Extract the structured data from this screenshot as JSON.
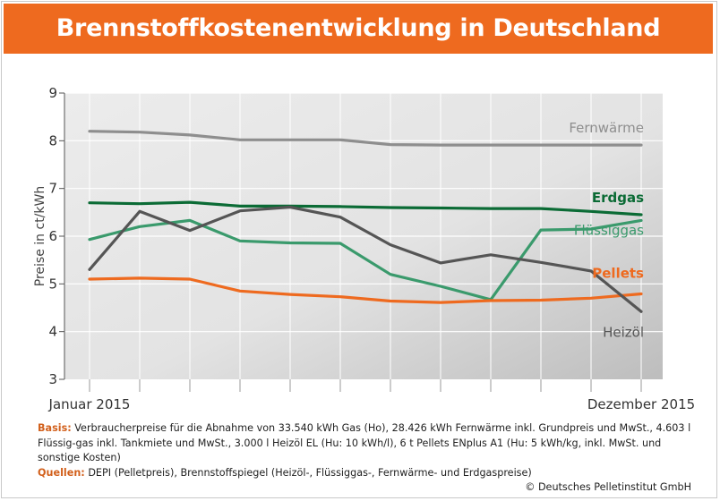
{
  "title": "Brennstoffkostenentwicklung in Deutschland",
  "chart_data": {
    "type": "line",
    "title": "Brennstoffkostenentwicklung in Deutschland",
    "ylabel": "Preise in ct/kWh",
    "xlabel": "",
    "ylim": [
      3,
      9
    ],
    "yticks": [
      3,
      4,
      5,
      6,
      7,
      8,
      9
    ],
    "x_tick_labels": [
      "Januar 2015",
      "Dezember 2015"
    ],
    "months": 12,
    "grid": true,
    "series": [
      {
        "name": "Fernwärme",
        "color": "#8e8e8e",
        "values": [
          8.2,
          8.18,
          8.12,
          8.02,
          8.02,
          8.02,
          7.92,
          7.91,
          7.91,
          7.91,
          7.91,
          7.91
        ]
      },
      {
        "name": "Erdgas",
        "color": "#0b6b35",
        "values": [
          6.7,
          6.68,
          6.71,
          6.63,
          6.63,
          6.62,
          6.6,
          6.59,
          6.58,
          6.58,
          6.52,
          6.45
        ]
      },
      {
        "name": "Flüssiggas",
        "color": "#3a9a6c",
        "values": [
          5.93,
          6.2,
          6.33,
          5.9,
          5.86,
          5.85,
          5.2,
          4.95,
          4.67,
          6.13,
          6.15,
          6.33
        ]
      },
      {
        "name": "Pellets",
        "color": "#ee6a1f",
        "values": [
          5.1,
          5.12,
          5.1,
          4.85,
          4.78,
          4.73,
          4.64,
          4.61,
          4.65,
          4.66,
          4.7,
          4.79
        ]
      },
      {
        "name": "Heizöl",
        "color": "#555555",
        "values": [
          5.3,
          6.52,
          6.12,
          6.53,
          6.61,
          6.4,
          5.82,
          5.44,
          5.61,
          5.45,
          5.27,
          4.42
        ]
      }
    ]
  },
  "footnote": {
    "basis_label": "Basis:",
    "basis_text": " Verbraucherpreise für die Abnahme von 33.540 kWh Gas (Ho), 28.426 kWh Fernwärme inkl. Grundpreis und MwSt., 4.603 l Flüssig-gas inkl. Tankmiete und MwSt., 3.000 l Heizöl EL (Hu: 10 kWh/l), 6 t Pellets ENplus A1 (Hu: 5 kWh/kg, inkl. MwSt. und sonstige Kosten)",
    "sources_label": "Quellen:",
    "sources_text": " DEPI (Pelletpreis), Brennstoffspiegel (Heizöl-, Flüssiggas-, Fernwärme- und Erdgaspreise)",
    "copyright": "© Deutsches Pelletinstitut GmbH"
  }
}
